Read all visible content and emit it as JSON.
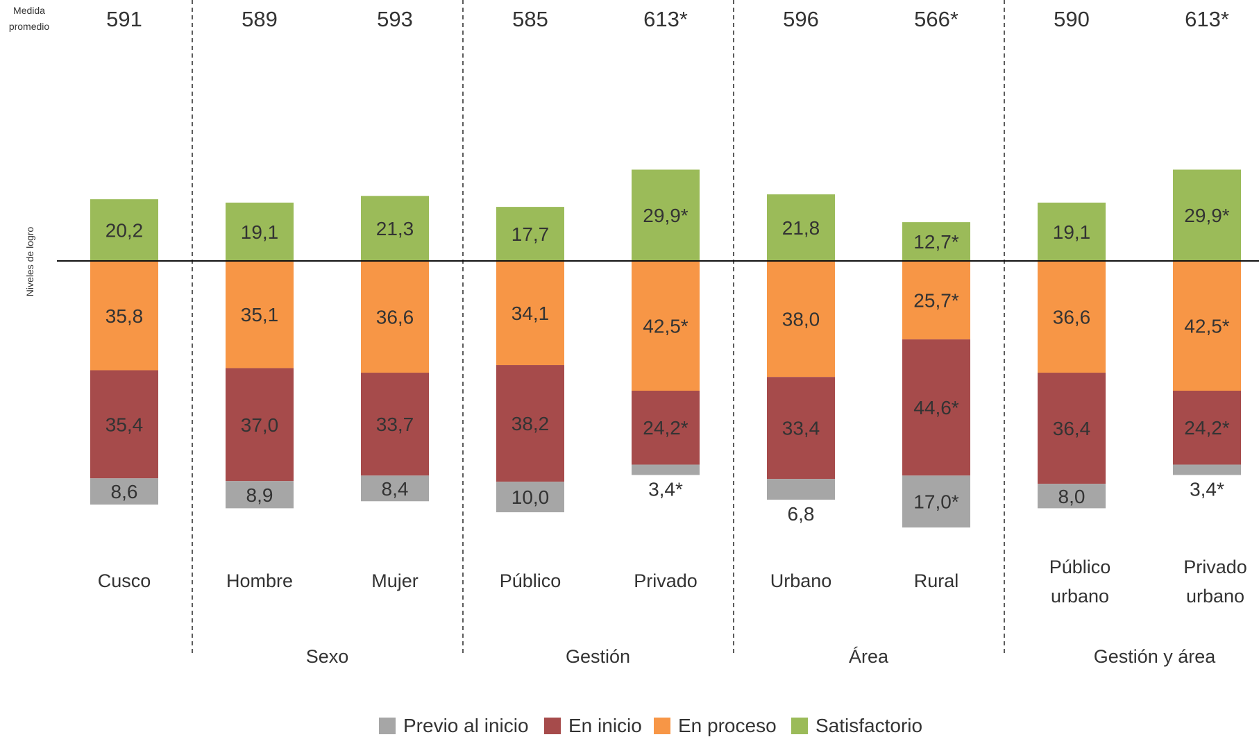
{
  "header": {
    "mean_label_line1": "Medida",
    "mean_label_line2": "promedio",
    "y_axis_label": "Niveles de logro"
  },
  "chart_data": {
    "type": "bar",
    "stacked": "diverging",
    "categories": [
      [
        "Cusco"
      ],
      [
        "Hombre"
      ],
      [
        "Mujer"
      ],
      [
        "Público"
      ],
      [
        "Privado"
      ],
      [
        "Urbano"
      ],
      [
        "Rural"
      ],
      [
        "Público",
        "urbano"
      ],
      [
        "Privado",
        "urbano"
      ]
    ],
    "means": [
      "591",
      "589",
      "593",
      "585",
      "613*",
      "596",
      "566*",
      "590",
      "613*"
    ],
    "groups": [
      {
        "label": "",
        "members": [
          0
        ]
      },
      {
        "label": "Sexo",
        "members": [
          1,
          2
        ]
      },
      {
        "label": "Gestión",
        "members": [
          3,
          4
        ]
      },
      {
        "label": "Área",
        "members": [
          5,
          6
        ]
      },
      {
        "label": "Gestión y área",
        "members": [
          7,
          8
        ]
      }
    ],
    "series": [
      {
        "name": "Previo al inicio",
        "color": "#a6a6a6",
        "direction": "below",
        "values": [
          8.6,
          8.9,
          8.4,
          10.0,
          3.4,
          6.8,
          17.0,
          8.0,
          3.4
        ],
        "labels": [
          "8,6",
          "8,9",
          "8,4",
          "10,0",
          "3,4*",
          "6,8",
          "17,0*",
          "8,0",
          "3,4*"
        ],
        "label_color": [
          "dark",
          "dark",
          "dark",
          "dark",
          "dark",
          "dark",
          "dark",
          "dark",
          "dark"
        ]
      },
      {
        "name": "En inicio",
        "color": "#a64b4b",
        "direction": "below",
        "values": [
          35.4,
          37.0,
          33.7,
          38.2,
          24.2,
          33.4,
          44.6,
          36.4,
          24.2
        ],
        "labels": [
          "35,4",
          "37,0",
          "33,7",
          "38,2",
          "24,2*",
          "33,4",
          "44,6*",
          "36,4",
          "24,2*"
        ],
        "label_color": [
          "light",
          "light",
          "light",
          "light",
          "light",
          "light",
          "light",
          "light",
          "light"
        ]
      },
      {
        "name": "En proceso",
        "color": "#f79646",
        "direction": "below",
        "values": [
          35.8,
          35.1,
          36.6,
          34.1,
          42.5,
          38.0,
          25.7,
          36.6,
          42.5
        ],
        "labels": [
          "35,8",
          "35,1",
          "36,6",
          "34,1",
          "42,5*",
          "38,0",
          "25,7*",
          "36,6",
          "42,5*"
        ],
        "label_color": [
          "dark",
          "dark",
          "dark",
          "dark",
          "light",
          "dark",
          "light",
          "dark",
          "light"
        ]
      },
      {
        "name": "Satisfactorio",
        "color": "#9bbb59",
        "direction": "above",
        "values": [
          20.2,
          19.1,
          21.3,
          17.7,
          29.9,
          21.8,
          12.7,
          19.1,
          29.9
        ],
        "labels": [
          "20,2",
          "19,1",
          "21,3",
          "17,7",
          "29,9*",
          "21,8",
          "12,7*",
          "19,1",
          "29,9*"
        ],
        "label_color": [
          "dark",
          "dark",
          "dark",
          "dark",
          "light",
          "dark",
          "dark",
          "dark",
          "light"
        ]
      }
    ],
    "legend_order": [
      "Previo al inicio",
      "En inicio",
      "En proceso",
      "Satisfactorio"
    ],
    "legend_position": "bottom",
    "grid": false
  }
}
